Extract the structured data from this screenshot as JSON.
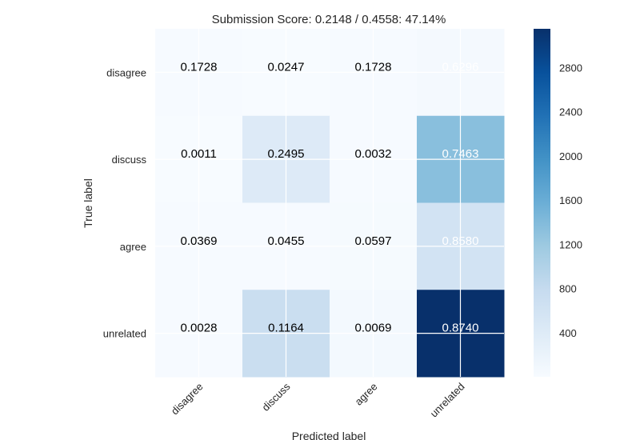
{
  "chart_data": {
    "type": "heatmap",
    "title": "Submission Score: 0.2148 / 0.4558: 47.14%",
    "xlabel": "Predicted label",
    "ylabel": "True label",
    "x_categories": [
      "disagree",
      "discuss",
      "agree",
      "unrelated"
    ],
    "y_categories": [
      "disagree",
      "discuss",
      "agree",
      "unrelated"
    ],
    "values": [
      [
        0.1728,
        0.0247,
        0.1728,
        0.6296
      ],
      [
        0.0011,
        0.2495,
        0.0032,
        0.7463
      ],
      [
        0.0369,
        0.0455,
        0.0597,
        0.858
      ],
      [
        0.0028,
        0.1164,
        0.0069,
        0.874
      ]
    ],
    "cell_labels": [
      [
        "0.1728",
        "0.0247",
        "0.1728",
        "0.6296"
      ],
      [
        "0.0011",
        "0.2495",
        "0.0032",
        "0.7463"
      ],
      [
        "0.0369",
        "0.0455",
        "0.0597",
        "0.8580"
      ],
      [
        "0.0028",
        "0.1164",
        "0.0069",
        "0.8740"
      ]
    ],
    "cell_intensity": [
      [
        15,
        2,
        15,
        52
      ],
      [
        5,
        410,
        15,
        1340
      ],
      [
        15,
        18,
        25,
        590
      ],
      [
        20,
        720,
        60,
        3150
      ]
    ],
    "colorbar": {
      "range": [
        0,
        3150
      ],
      "ticks": [
        400,
        800,
        1200,
        1600,
        2000,
        2400,
        2800
      ],
      "colormap": "Blues"
    },
    "grid": true,
    "colors": {
      "low": "#f7fbff",
      "high": "#08306b",
      "text_dark": "#000000",
      "text_light": "#ffffff",
      "grid": "#ffffff"
    }
  }
}
